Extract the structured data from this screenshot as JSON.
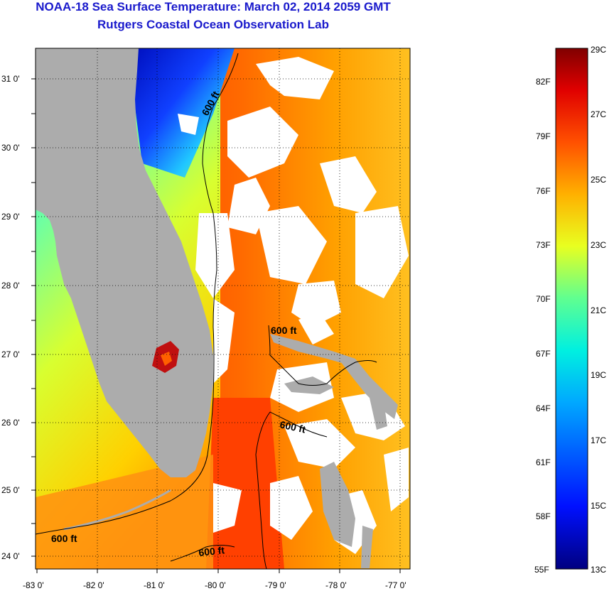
{
  "title": {
    "line1": "NOAA-18 Sea Surface Temperature:  March 02, 2014 2059 GMT",
    "line2": "Rutgers Coastal Ocean Observation Lab"
  },
  "axes": {
    "x_ticks": [
      "-83 0'",
      "-82 0'",
      "-81 0'",
      "-80 0'",
      "-79 0'",
      "-78 0'",
      "-77 0'"
    ],
    "y_ticks": [
      "31 0'",
      "30 0'",
      "29 0'",
      "28 0'",
      "27 0'",
      "26 0'",
      "25 0'",
      "24 0'"
    ]
  },
  "contours": {
    "label": "600 ft",
    "labels": [
      "600 ft",
      "600 ft",
      "600 ft",
      "600 ft",
      "600 ft"
    ]
  },
  "colorbar": {
    "fahrenheit": [
      "82F",
      "79F",
      "76F",
      "73F",
      "70F",
      "67F",
      "64F",
      "61F",
      "58F",
      "55F"
    ],
    "celsius": [
      "29C",
      "27C",
      "25C",
      "23C",
      "21C",
      "19C",
      "17C",
      "15C",
      "13C"
    ]
  },
  "colors": {
    "title": "#1a1acc",
    "land": "#acacac",
    "cloud": "#ffffff"
  }
}
